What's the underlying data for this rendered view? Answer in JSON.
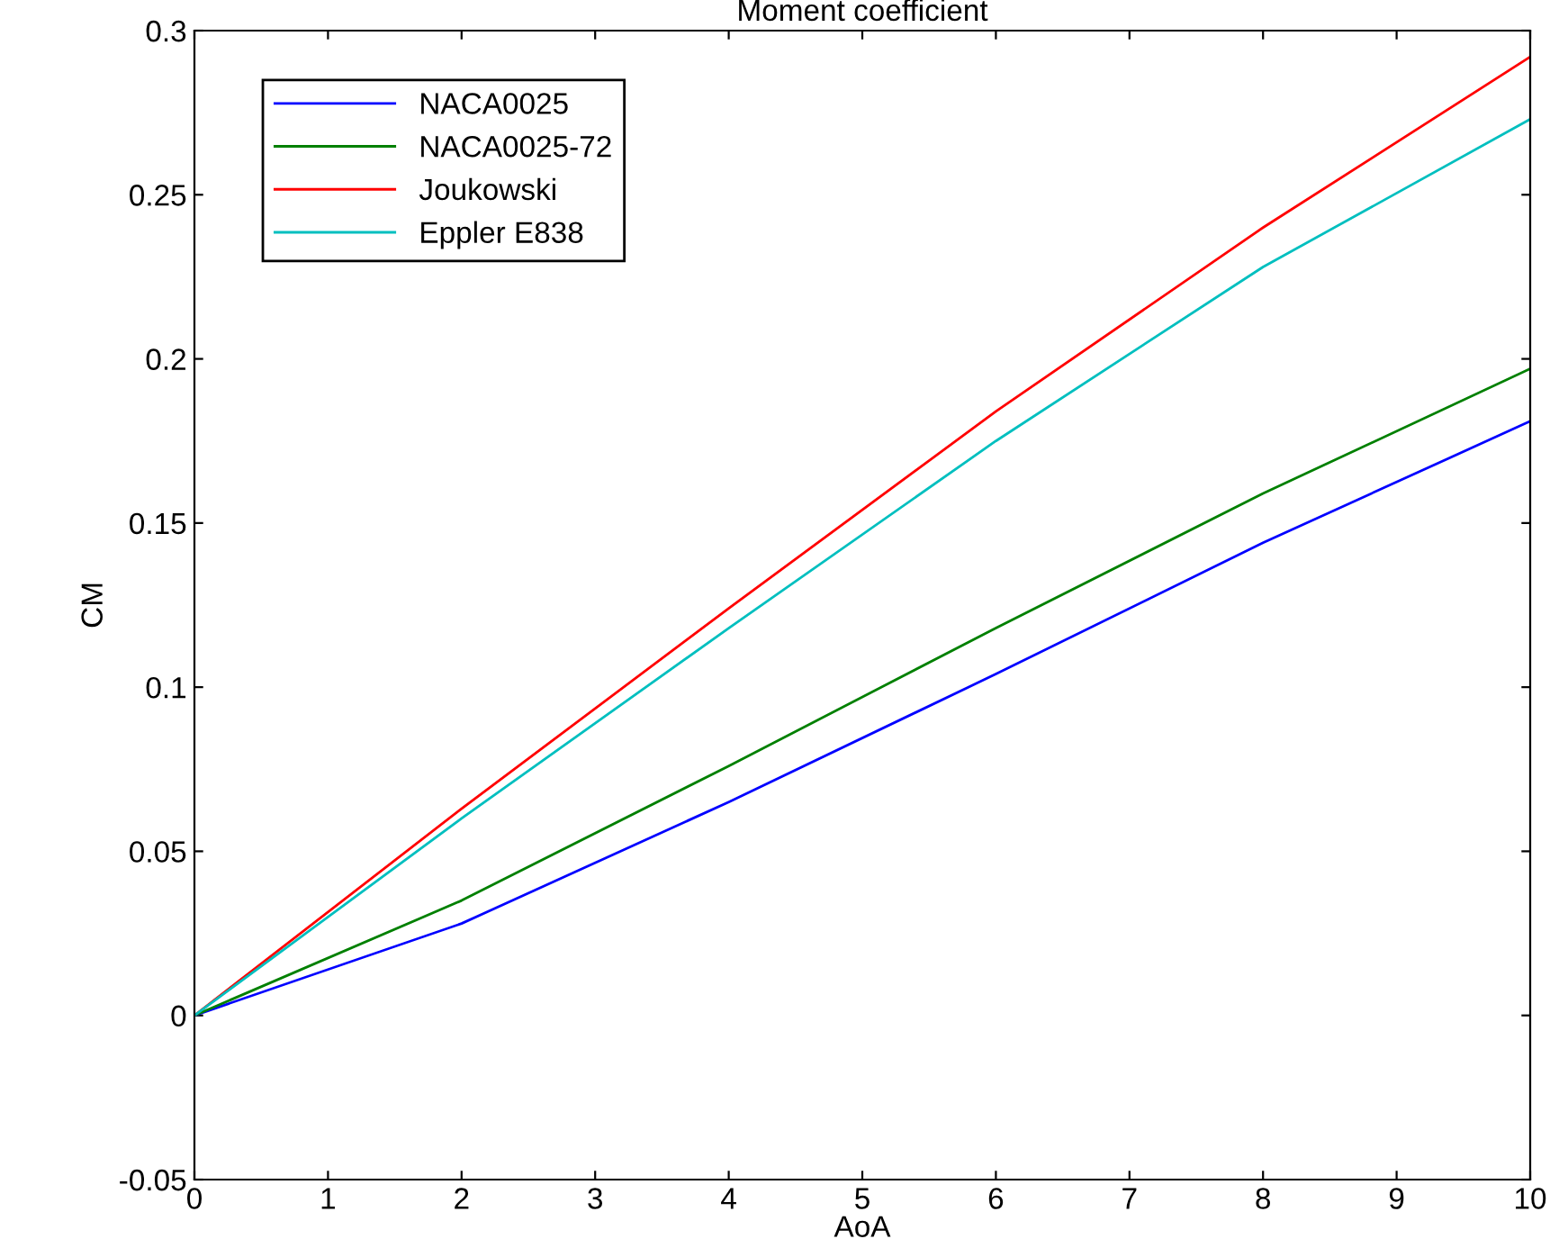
{
  "chart_data": {
    "type": "line",
    "title": "Moment coefficient",
    "xlabel": "AoA",
    "ylabel": "CM",
    "x": [
      0,
      2,
      4,
      6,
      8,
      10
    ],
    "series": [
      {
        "name": "NACA0025",
        "color": "#0000ff",
        "values": [
          0,
          0.028,
          0.065,
          0.104,
          0.144,
          0.181
        ]
      },
      {
        "name": "NACA0025-72",
        "color": "#008000",
        "values": [
          0,
          0.035,
          0.076,
          0.118,
          0.159,
          0.197
        ]
      },
      {
        "name": "Joukowski",
        "color": "#ff0000",
        "values": [
          0,
          0.063,
          0.124,
          0.184,
          0.24,
          0.292
        ]
      },
      {
        "name": "Eppler E838",
        "color": "#00bfbf",
        "values": [
          0,
          0.06,
          0.118,
          0.175,
          0.228,
          0.273
        ]
      }
    ],
    "xlim": [
      0,
      10
    ],
    "xticks": [
      0,
      1,
      2,
      3,
      4,
      5,
      6,
      7,
      8,
      9,
      10
    ],
    "ylim": [
      -0.05,
      0.3
    ],
    "yticks": [
      {
        "value": -0.05,
        "label": "-0.05"
      },
      0,
      0.05,
      0.1,
      0.15,
      0.2,
      0.25,
      0.3
    ],
    "legend": "top left",
    "grid": false,
    "line_style": "solid"
  }
}
